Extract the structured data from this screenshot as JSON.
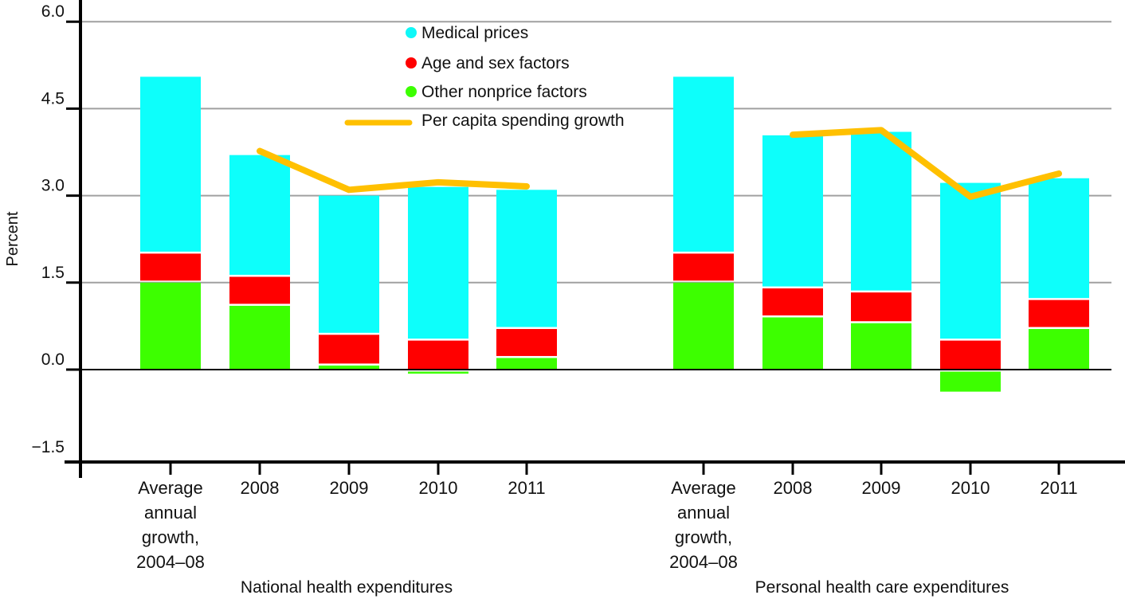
{
  "chart_data": {
    "type": "bar",
    "stacked": true,
    "title": "",
    "xlabel": "",
    "ylabel": "Percent",
    "ylim": [
      -1.5,
      6.0
    ],
    "yticks": [
      "6.0",
      "4.5",
      "3.0",
      "1.5",
      "0.0",
      "-1.5"
    ],
    "ytick_values": [
      6.0,
      4.5,
      3.0,
      1.5,
      0.0,
      -1.5
    ],
    "grid": true,
    "legend_position": "top-center",
    "groups": [
      {
        "name": "National health expenditures",
        "categories": [
          "Average annual growth, 2004–08",
          "2008",
          "2009",
          "2010",
          "2011"
        ],
        "category_lines": [
          [
            "Average",
            "annual",
            "growth,",
            "2004–08"
          ],
          [
            "2008"
          ],
          [
            "2009"
          ],
          [
            "2010"
          ],
          [
            "2011"
          ]
        ],
        "series": [
          {
            "name": "Other nonprice factors",
            "values": [
              1.5,
              1.1,
              0.07,
              -0.07,
              0.2
            ]
          },
          {
            "name": "Age and sex factors",
            "values": [
              0.5,
              0.5,
              0.53,
              0.5,
              0.5
            ]
          },
          {
            "name": "Medical prices",
            "values": [
              3.05,
              2.1,
              2.4,
              2.65,
              2.4
            ]
          }
        ],
        "line": {
          "name": "Per capita spending growth",
          "values": [
            null,
            3.77,
            3.1,
            3.23,
            3.16
          ]
        }
      },
      {
        "name": "Personal health care expenditures",
        "categories": [
          "Average annual growth, 2004–08",
          "2008",
          "2009",
          "2010",
          "2011"
        ],
        "category_lines": [
          [
            "Average",
            "annual",
            "growth,",
            "2004–08"
          ],
          [
            "2008"
          ],
          [
            "2009"
          ],
          [
            "2010"
          ],
          [
            "2011"
          ]
        ],
        "series": [
          {
            "name": "Other nonprice factors",
            "values": [
              1.5,
              0.9,
              0.8,
              -0.38,
              0.7
            ]
          },
          {
            "name": "Age and sex factors",
            "values": [
              0.5,
              0.5,
              0.53,
              0.5,
              0.5
            ]
          },
          {
            "name": "Medical prices",
            "values": [
              3.05,
              2.64,
              2.77,
              2.72,
              2.1
            ]
          }
        ],
        "line": {
          "name": "Per capita spending growth",
          "values": [
            null,
            4.05,
            4.13,
            2.98,
            3.38
          ]
        }
      }
    ],
    "legend": [
      {
        "name": "Medical prices",
        "marker": "dot",
        "color": "#0ff8f8"
      },
      {
        "name": "Age and sex factors",
        "marker": "dot",
        "color": "#ff0000"
      },
      {
        "name": "Other nonprice factors",
        "marker": "dot",
        "color": "#3cff00"
      },
      {
        "name": "Per capita spending growth",
        "marker": "line",
        "color": "#ffc000"
      }
    ],
    "colors": {
      "Medical prices": "#0dfffb",
      "Age and sex factors": "#ff0000",
      "Other nonprice factors": "#3dff00",
      "Per capita spending growth": "#ffc000",
      "grid": "#a0a0a0",
      "axis": "#000000"
    }
  }
}
